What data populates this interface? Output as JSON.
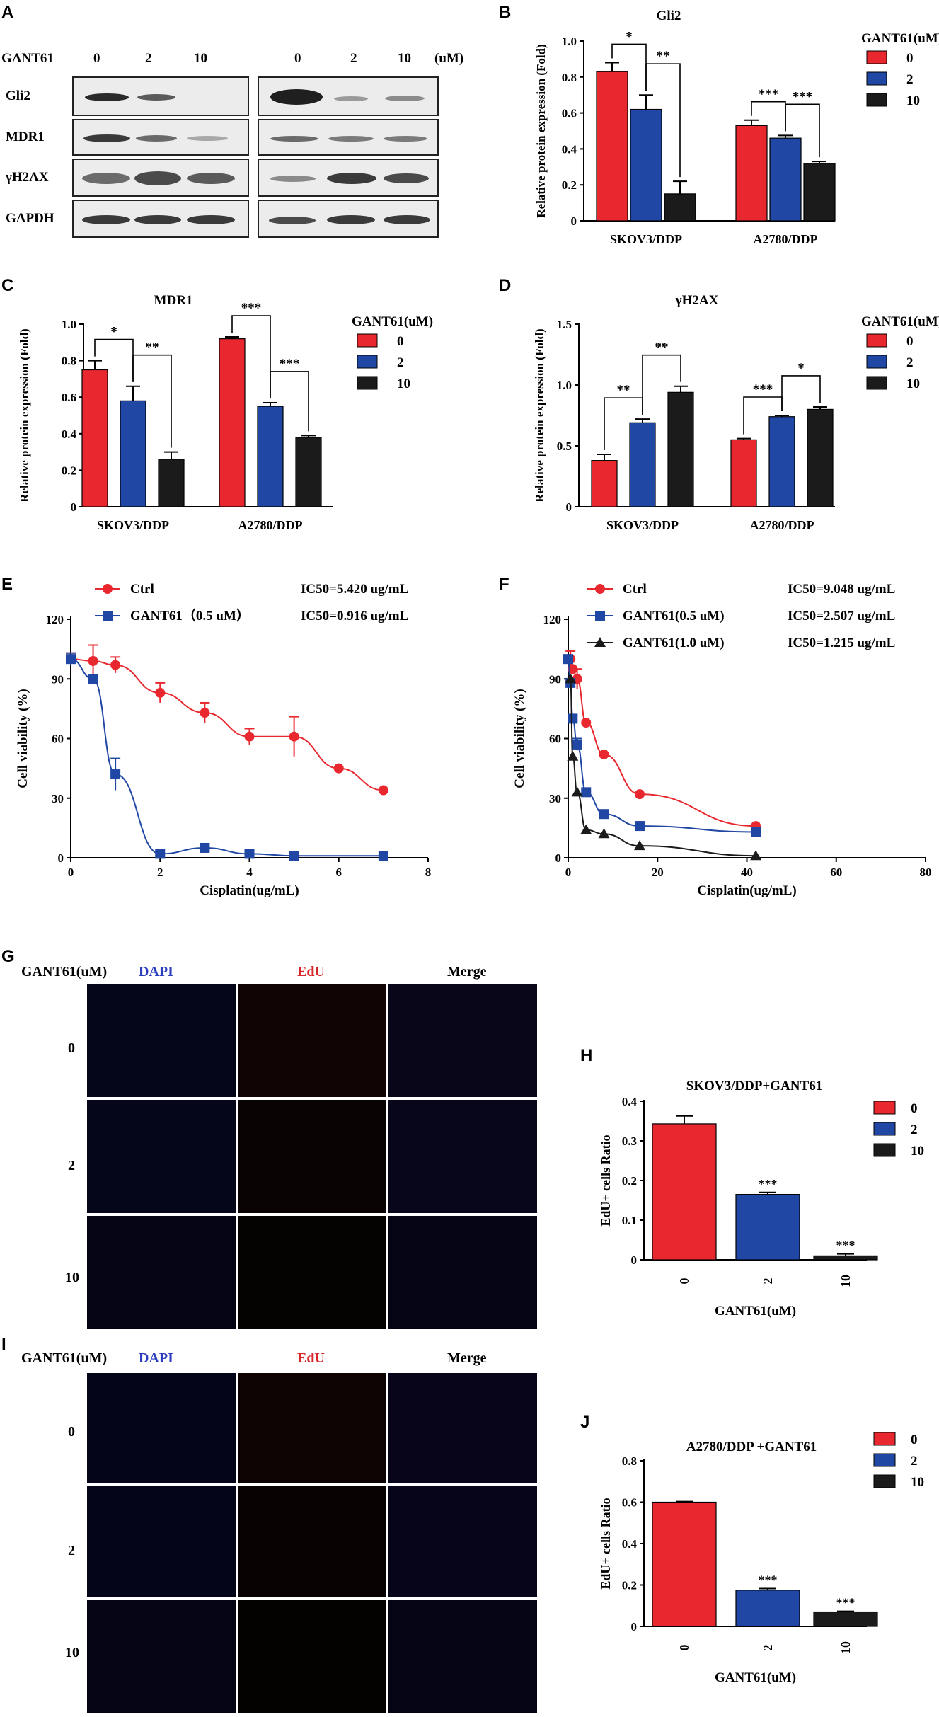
{
  "panel_letters": [
    "A",
    "B",
    "C",
    "D",
    "E",
    "F",
    "G",
    "H",
    "I",
    "J"
  ],
  "panel_a": {
    "treatment_label": "GANT61",
    "doses": [
      "0",
      "2",
      "10",
      "0",
      "2",
      "10"
    ],
    "unit": "(uM)",
    "rows": [
      "Gli2",
      "MDR1",
      "γH2AX",
      "GAPDH"
    ]
  },
  "colors": {
    "red": "#e8272e",
    "blue": "#1f47a3",
    "black": "#1b1b1b",
    "dapi": "#3a48c8",
    "edu": "#d8262a"
  },
  "chart_data": [
    {
      "id": "B",
      "type": "bar",
      "title": "Gli2",
      "ylabel": "Relative protein expression (Fold)",
      "xlabel": "",
      "categories": [
        "SKOV3/DDP",
        "A2780/DDP"
      ],
      "legend_title": "GANT61(uM)",
      "series": [
        {
          "name": "0",
          "values": [
            0.83,
            0.53
          ],
          "errors": [
            0.05,
            0.03
          ]
        },
        {
          "name": "2",
          "values": [
            0.62,
            0.46
          ],
          "errors": [
            0.08,
            0.015
          ]
        },
        {
          "name": "10",
          "values": [
            0.15,
            0.32
          ],
          "errors": [
            0.07,
            0.01
          ]
        }
      ],
      "ylim": [
        0,
        1.0
      ],
      "yticks": [
        "0",
        "0.2",
        "0.4",
        "0.6",
        "0.8",
        "1.0"
      ],
      "significance": [
        "*",
        "**",
        "***",
        "***"
      ]
    },
    {
      "id": "C",
      "type": "bar",
      "title": "MDR1",
      "ylabel": "Relative protein expression (Fold)",
      "xlabel": "",
      "categories": [
        "SKOV3/DDP",
        "A2780/DDP"
      ],
      "legend_title": "GANT61(uM)",
      "series": [
        {
          "name": "0",
          "values": [
            0.75,
            0.92
          ],
          "errors": [
            0.05,
            0.01
          ]
        },
        {
          "name": "2",
          "values": [
            0.58,
            0.55
          ],
          "errors": [
            0.08,
            0.02
          ]
        },
        {
          "name": "10",
          "values": [
            0.26,
            0.38
          ],
          "errors": [
            0.04,
            0.01
          ]
        }
      ],
      "ylim": [
        0,
        1.0
      ],
      "yticks": [
        "0",
        "0.2",
        "0.4",
        "0.6",
        "0.8",
        "1.0"
      ],
      "significance": [
        "*",
        "**",
        "***",
        "***"
      ]
    },
    {
      "id": "D",
      "type": "bar",
      "title": "γH2AX",
      "ylabel": "Relative protein expression (Fold)",
      "xlabel": "",
      "categories": [
        "SKOV3/DDP",
        "A2780/DDP"
      ],
      "legend_title": "GANT61(uM)",
      "series": [
        {
          "name": "0",
          "values": [
            0.38,
            0.55
          ],
          "errors": [
            0.05,
            0.01
          ]
        },
        {
          "name": "2",
          "values": [
            0.69,
            0.74
          ],
          "errors": [
            0.03,
            0.01
          ]
        },
        {
          "name": "10",
          "values": [
            0.94,
            0.8
          ],
          "errors": [
            0.05,
            0.02
          ]
        }
      ],
      "ylim": [
        0,
        1.5
      ],
      "yticks": [
        "0",
        "0.5",
        "1.0",
        "1.5"
      ],
      "significance": [
        "**",
        "**",
        "***",
        "*"
      ]
    },
    {
      "id": "E",
      "type": "line",
      "xlabel": "Cisplatin(ug/mL)",
      "ylabel": "Cell viability (%)",
      "xlim": [
        0,
        8
      ],
      "ylim": [
        0,
        120
      ],
      "xticks": [
        "0",
        "2",
        "4",
        "6",
        "8"
      ],
      "yticks": [
        "0",
        "30",
        "60",
        "90",
        "120"
      ],
      "series": [
        {
          "name": "Ctrl",
          "ic50": "IC50=5.420  ug/mL",
          "marker": "circle",
          "x": [
            0,
            0.5,
            1,
            2,
            3,
            4,
            5,
            6,
            7
          ],
          "y": [
            100,
            99,
            97,
            83,
            73,
            61,
            61,
            45,
            34
          ],
          "err": [
            3,
            8,
            4,
            5,
            5,
            4,
            10,
            0,
            0
          ]
        },
        {
          "name": "GANT61（0.5 uM）",
          "ic50": "IC50=0.916  ug/mL",
          "marker": "square",
          "x": [
            0,
            0.5,
            1,
            2,
            3,
            4,
            5,
            7
          ],
          "y": [
            100,
            90,
            42,
            2,
            5,
            2,
            1,
            1
          ],
          "err": [
            3,
            2,
            8,
            0,
            0,
            0,
            0,
            0
          ]
        }
      ]
    },
    {
      "id": "F",
      "type": "line",
      "xlabel": "Cisplatin(ug/mL)",
      "ylabel": "Cell viability (%)",
      "xlim": [
        0,
        80
      ],
      "ylim": [
        0,
        120
      ],
      "xticks": [
        "0",
        "20",
        "40",
        "60",
        "80"
      ],
      "yticks": [
        "0",
        "30",
        "60",
        "90",
        "120"
      ],
      "series": [
        {
          "name": "Ctrl",
          "ic50": "IC50=9.048  ug/mL",
          "marker": "circle",
          "x": [
            0.5,
            1,
            2,
            4,
            8,
            16,
            42
          ],
          "y": [
            100,
            95,
            90,
            68,
            52,
            32,
            16
          ],
          "err": [
            4,
            0,
            5,
            0,
            0,
            0,
            0
          ]
        },
        {
          "name": "GANT61(0.5 uM)",
          "ic50": "IC50=2.507  ug/mL",
          "marker": "square",
          "x": [
            0,
            0.5,
            1,
            2,
            4,
            8,
            16,
            42
          ],
          "y": [
            100,
            88,
            70,
            57,
            33,
            22,
            16,
            13
          ],
          "err": [
            2,
            2,
            2,
            3,
            0,
            0,
            0,
            0
          ]
        },
        {
          "name": "GANT61(1.0 uM)",
          "ic50": "IC50=1.215  ug/mL",
          "marker": "triangle",
          "x": [
            0.5,
            1,
            2,
            4,
            8,
            16,
            42
          ],
          "y": [
            90,
            51,
            33,
            14,
            12,
            6,
            1
          ],
          "err": [
            0,
            0,
            0,
            0,
            0,
            0,
            0
          ]
        }
      ]
    },
    {
      "id": "H",
      "type": "bar",
      "title": "SKOV3/DDP+GANT61",
      "xlabel": "GANT61(uM)",
      "ylabel": "EdU+ cells Ratio",
      "categories": [
        "0",
        "2",
        "10"
      ],
      "values": [
        0.343,
        0.165,
        0.01
      ],
      "errors": [
        0.02,
        0.005,
        0.005
      ],
      "legend": [
        "0",
        "2",
        "10"
      ],
      "ylim": [
        0,
        0.4
      ],
      "yticks": [
        "0",
        "0.1",
        "0.2",
        "0.3",
        "0.4"
      ],
      "significance": [
        "",
        "***",
        "***"
      ]
    },
    {
      "id": "J",
      "type": "bar",
      "title": "A2780/DDP +GANT61",
      "xlabel": "GANT61(uM)",
      "ylabel": "EdU+ cells Ratio",
      "categories": [
        "0",
        "2",
        "10"
      ],
      "values": [
        0.6,
        0.175,
        0.07
      ],
      "errors": [
        0.003,
        0.008,
        0.003
      ],
      "legend": [
        "0",
        "2",
        "10"
      ],
      "ylim": [
        0,
        0.8
      ],
      "yticks": [
        "0",
        "0.2",
        "0.4",
        "0.6",
        "0.8"
      ],
      "significance": [
        "",
        "***",
        "***"
      ]
    }
  ],
  "panel_g": {
    "row_header": "GANT61(uM)",
    "columns": [
      "DAPI",
      "EdU",
      "Merge"
    ],
    "rows": [
      "0",
      "2",
      "10"
    ]
  },
  "panel_i": {
    "row_header": "GANT61(uM)",
    "columns": [
      "DAPI",
      "EdU",
      "Merge"
    ],
    "rows": [
      "0",
      "2",
      "10"
    ]
  }
}
